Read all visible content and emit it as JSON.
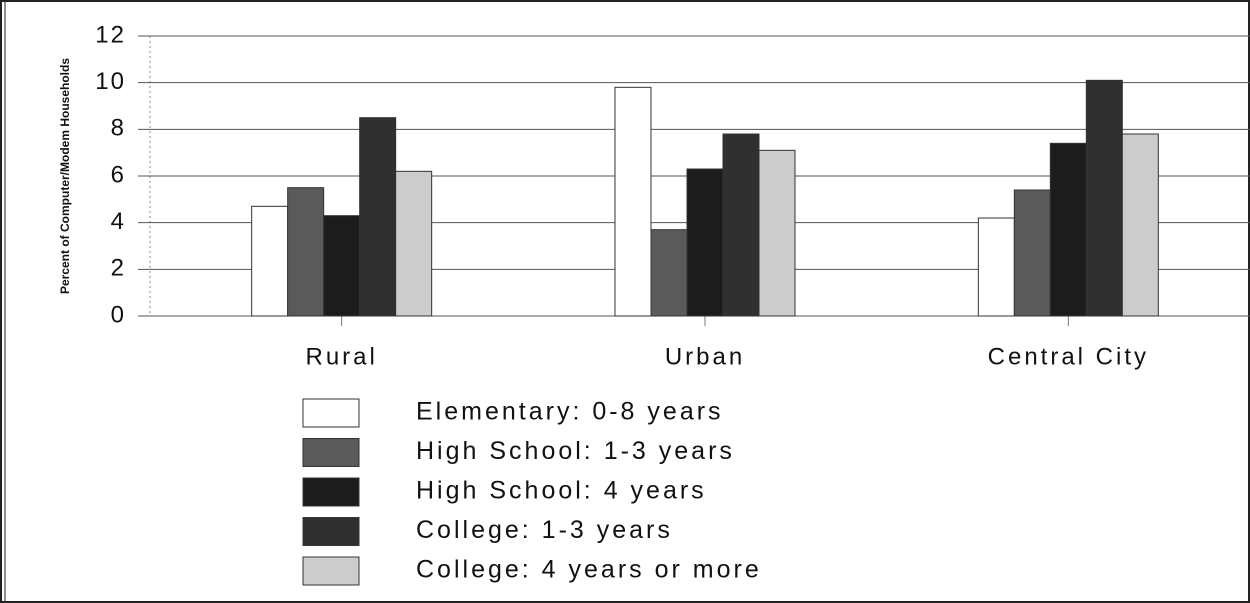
{
  "chart_data": {
    "type": "bar",
    "y_label": "Percent of Computer/Modem Households",
    "categories": [
      "Rural",
      "Urban",
      "Central City"
    ],
    "series": [
      {
        "name": "Elementary: 0-8 years",
        "color": "#ffffff",
        "values": [
          4.7,
          9.8,
          4.2
        ]
      },
      {
        "name": "High School: 1-3 years",
        "color": "#5a5a5a",
        "values": [
          5.5,
          3.7,
          5.4
        ]
      },
      {
        "name": "High School: 4 years",
        "color": "#1c1c1c",
        "values": [
          4.3,
          6.3,
          7.4
        ]
      },
      {
        "name": "College: 1-3 years",
        "color": "#303030",
        "values": [
          8.5,
          7.8,
          10.1
        ]
      },
      {
        "name": "College: 4 years  or more",
        "color": "#cccccc",
        "values": [
          6.2,
          7.1,
          7.8
        ]
      }
    ],
    "ylim": [
      0,
      12
    ],
    "yticks": [
      0,
      2,
      4,
      6,
      8,
      10,
      12
    ],
    "grid": true
  }
}
